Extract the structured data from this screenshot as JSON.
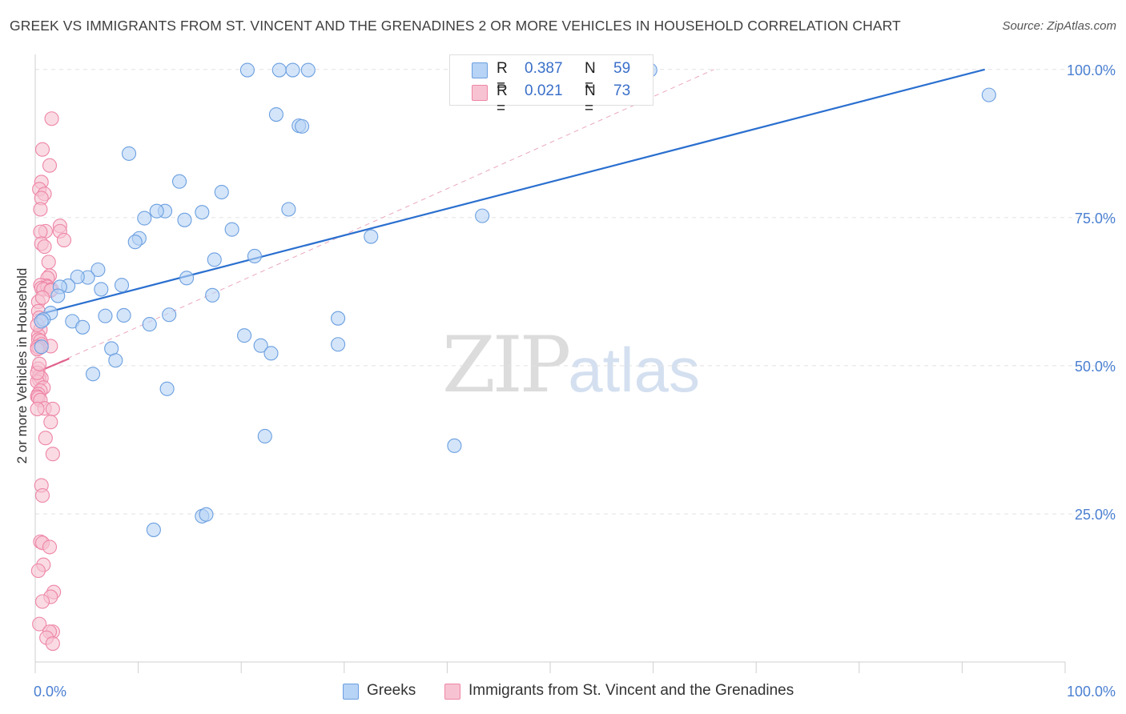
{
  "title": "GREEK VS IMMIGRANTS FROM ST. VINCENT AND THE GRENADINES 2 OR MORE VEHICLES IN HOUSEHOLD CORRELATION CHART",
  "source": "Source: ZipAtlas.com",
  "watermark": {
    "zip": "ZIP",
    "atlas": "atlas"
  },
  "legend": {
    "series": [
      {
        "r_label": "R =",
        "r_value": "0.387",
        "n_label": "N =",
        "n_value": "59",
        "name": "Greeks"
      },
      {
        "r_label": "R =",
        "r_value": "0.021",
        "n_label": "N =",
        "n_value": "73",
        "name": "Immigrants from St. Vincent and the Grenadines"
      }
    ]
  },
  "colors": {
    "blue_fill": "#b7d3f5",
    "blue_stroke": "#6b9fe0",
    "blue_line": "#2a6fcf",
    "pink_fill": "#f7c3d2",
    "pink_stroke": "#ee85a6",
    "pink_line": "#e0628c",
    "grid": "#e2e2e2",
    "tick_text": "#4a7fd1"
  },
  "chart_data": {
    "type": "scatter",
    "title": "GREEK VS IMMIGRANTS FROM ST. VINCENT AND THE GRENADINES 2 OR MORE VEHICLES IN HOUSEHOLD CORRELATION CHART",
    "xlabel": "",
    "ylabel": "2 or more Vehicles in Household",
    "xlim": [
      0,
      100
    ],
    "ylim": [
      0,
      102
    ],
    "x_tick_labels": [
      "0.0%",
      "100.0%"
    ],
    "y_ticks": [
      25,
      50,
      75,
      100
    ],
    "y_tick_labels": [
      "25.0%",
      "50.0%",
      "75.0%",
      "100.0%"
    ],
    "series": [
      {
        "name": "Greeks",
        "points": [
          [
            20.6,
            99.9
          ],
          [
            23.7,
            99.9
          ],
          [
            25.0,
            99.9
          ],
          [
            59.7,
            99.9
          ],
          [
            92.6,
            95.7
          ],
          [
            23.4,
            92.4
          ],
          [
            25.6,
            90.5
          ],
          [
            25.9,
            90.4
          ],
          [
            9.1,
            85.8
          ],
          [
            14.0,
            81.1
          ],
          [
            18.1,
            79.3
          ],
          [
            24.6,
            76.4
          ],
          [
            12.6,
            76.1
          ],
          [
            11.8,
            76.1
          ],
          [
            10.6,
            74.9
          ],
          [
            16.2,
            75.9
          ],
          [
            14.5,
            74.6
          ],
          [
            43.4,
            75.3
          ],
          [
            19.1,
            73.0
          ],
          [
            10.1,
            71.5
          ],
          [
            9.7,
            70.9
          ],
          [
            32.6,
            71.8
          ],
          [
            21.3,
            68.5
          ],
          [
            17.4,
            67.9
          ],
          [
            6.1,
            66.2
          ],
          [
            5.1,
            64.9
          ],
          [
            4.1,
            65.0
          ],
          [
            14.7,
            64.8
          ],
          [
            8.4,
            63.6
          ],
          [
            6.4,
            62.9
          ],
          [
            3.2,
            63.5
          ],
          [
            2.4,
            63.3
          ],
          [
            2.2,
            61.8
          ],
          [
            17.2,
            61.9
          ],
          [
            1.5,
            58.9
          ],
          [
            0.8,
            57.8
          ],
          [
            0.6,
            57.5
          ],
          [
            6.8,
            58.4
          ],
          [
            8.6,
            58.5
          ],
          [
            13.0,
            58.6
          ],
          [
            11.1,
            57.0
          ],
          [
            3.6,
            57.5
          ],
          [
            4.6,
            56.5
          ],
          [
            20.3,
            55.1
          ],
          [
            29.4,
            53.6
          ],
          [
            0.6,
            53.2
          ],
          [
            21.9,
            53.4
          ],
          [
            7.4,
            52.9
          ],
          [
            22.9,
            52.1
          ],
          [
            7.8,
            50.9
          ],
          [
            5.6,
            48.6
          ],
          [
            12.8,
            46.1
          ],
          [
            22.3,
            38.1
          ],
          [
            40.7,
            36.5
          ],
          [
            16.2,
            24.6
          ],
          [
            16.6,
            24.9
          ],
          [
            11.5,
            22.3
          ],
          [
            29.4,
            58.0
          ],
          [
            26.5,
            99.9
          ]
        ],
        "trend": {
          "x": [
            0,
            92.2
          ],
          "y": [
            58.5,
            100
          ]
        }
      },
      {
        "name": "Immigrants from St. Vincent and the Grenadines",
        "points": [
          [
            1.6,
            91.7
          ],
          [
            0.7,
            86.5
          ],
          [
            1.4,
            83.8
          ],
          [
            0.6,
            81.0
          ],
          [
            0.4,
            79.8
          ],
          [
            0.9,
            79.0
          ],
          [
            0.6,
            78.3
          ],
          [
            0.5,
            76.4
          ],
          [
            2.4,
            73.6
          ],
          [
            2.4,
            72.7
          ],
          [
            1.0,
            72.7
          ],
          [
            0.5,
            72.6
          ],
          [
            2.8,
            71.2
          ],
          [
            0.6,
            70.6
          ],
          [
            0.9,
            70.1
          ],
          [
            1.3,
            67.5
          ],
          [
            1.4,
            65.2
          ],
          [
            1.2,
            64.8
          ],
          [
            1.1,
            63.5
          ],
          [
            0.5,
            63.6
          ],
          [
            0.6,
            63.1
          ],
          [
            1.2,
            63.3
          ],
          [
            0.8,
            62.9
          ],
          [
            1.6,
            62.9
          ],
          [
            1.5,
            62.7
          ],
          [
            0.3,
            60.8
          ],
          [
            0.3,
            59.2
          ],
          [
            0.4,
            58.1
          ],
          [
            0.5,
            56.1
          ],
          [
            0.3,
            55.1
          ],
          [
            0.3,
            54.4
          ],
          [
            0.5,
            54.2
          ],
          [
            1.5,
            53.3
          ],
          [
            0.6,
            53.6
          ],
          [
            0.2,
            53.2
          ],
          [
            0.4,
            53.0
          ],
          [
            0.2,
            52.8
          ],
          [
            0.3,
            49.5
          ],
          [
            0.4,
            48.3
          ],
          [
            0.4,
            47.6
          ],
          [
            0.6,
            47.9
          ],
          [
            0.2,
            47.3
          ],
          [
            0.8,
            46.3
          ],
          [
            0.5,
            45.8
          ],
          [
            0.3,
            45.2
          ],
          [
            0.2,
            44.8
          ],
          [
            0.3,
            44.6
          ],
          [
            0.5,
            44.2
          ],
          [
            0.9,
            42.8
          ],
          [
            1.7,
            42.7
          ],
          [
            0.2,
            42.7
          ],
          [
            1.5,
            40.5
          ],
          [
            1.0,
            37.8
          ],
          [
            1.7,
            35.1
          ],
          [
            0.6,
            29.8
          ],
          [
            0.7,
            28.1
          ],
          [
            0.5,
            20.3
          ],
          [
            0.7,
            20.1
          ],
          [
            1.4,
            19.4
          ],
          [
            0.8,
            16.4
          ],
          [
            0.3,
            15.4
          ],
          [
            1.8,
            11.8
          ],
          [
            1.5,
            11.0
          ],
          [
            0.7,
            10.2
          ],
          [
            0.4,
            6.4
          ],
          [
            1.7,
            5.1
          ],
          [
            1.4,
            5.1
          ],
          [
            1.1,
            4.1
          ],
          [
            1.7,
            3.1
          ],
          [
            0.2,
            48.8
          ],
          [
            0.4,
            50.3
          ],
          [
            0.7,
            61.5
          ],
          [
            0.2,
            56.9
          ]
        ],
        "trend": {
          "x": [
            0,
            3.3
          ],
          "y": [
            48.8,
            51.2
          ]
        },
        "trend_extension": {
          "x": [
            0,
            65.9
          ],
          "y": [
            48.8,
            100
          ]
        }
      }
    ]
  }
}
